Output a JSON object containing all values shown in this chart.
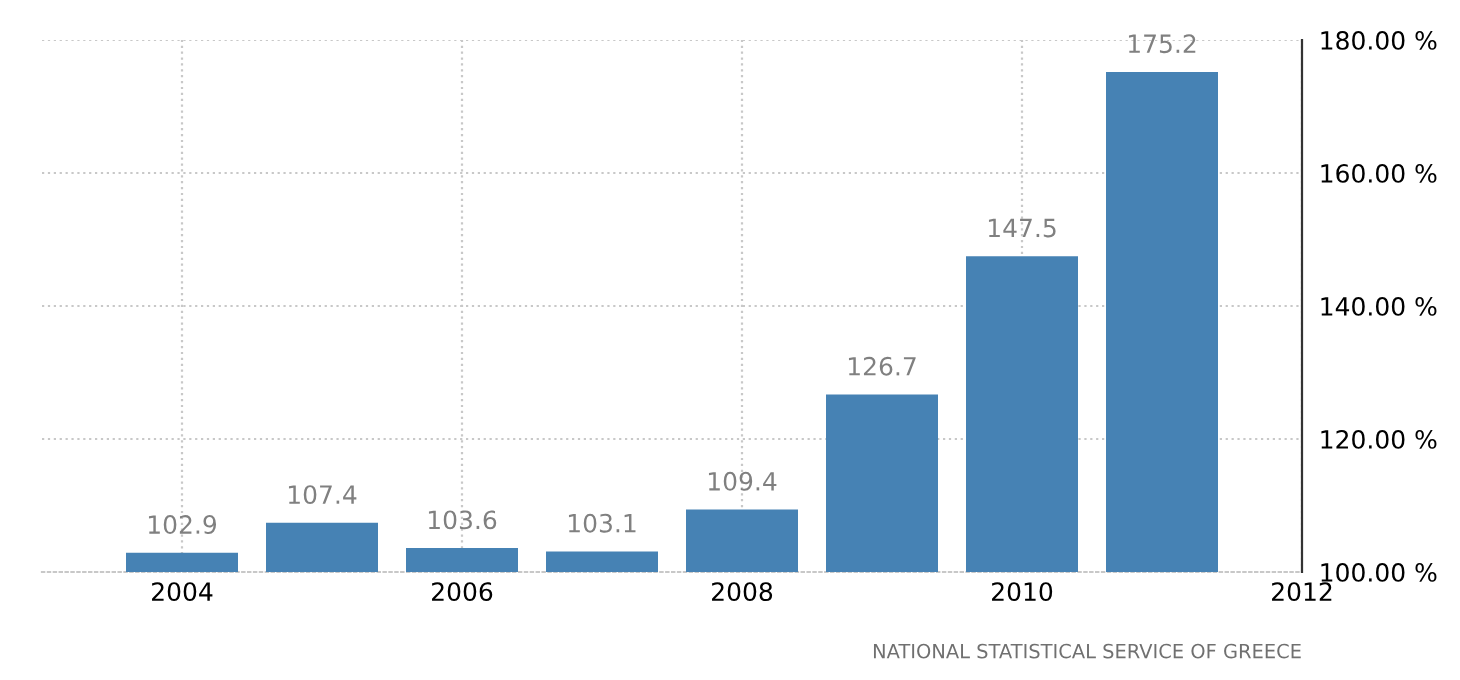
{
  "chart_data": {
    "type": "bar",
    "x": [
      2004,
      2005,
      2006,
      2007,
      2008,
      2009,
      2010,
      2011
    ],
    "values": [
      102.9,
      107.4,
      103.6,
      103.1,
      109.4,
      126.7,
      147.5,
      175.2
    ],
    "color": "#4682b4",
    "data_labels": true,
    "grid": true,
    "xlim": [
      2003,
      2012
    ],
    "xticks": [
      2004,
      2006,
      2008,
      2010,
      2012
    ],
    "ylim": [
      100,
      180
    ],
    "yticks": [
      {
        "value": 100,
        "label": "100.00 %"
      },
      {
        "value": 120,
        "label": "120.00 %"
      },
      {
        "value": 140,
        "label": "140.00 %"
      },
      {
        "value": 160,
        "label": "160.00 %"
      },
      {
        "value": 180,
        "label": "180.00 %"
      }
    ],
    "annotations": [
      "NATIONAL STATISTICAL SERVICE OF GREECE"
    ]
  }
}
